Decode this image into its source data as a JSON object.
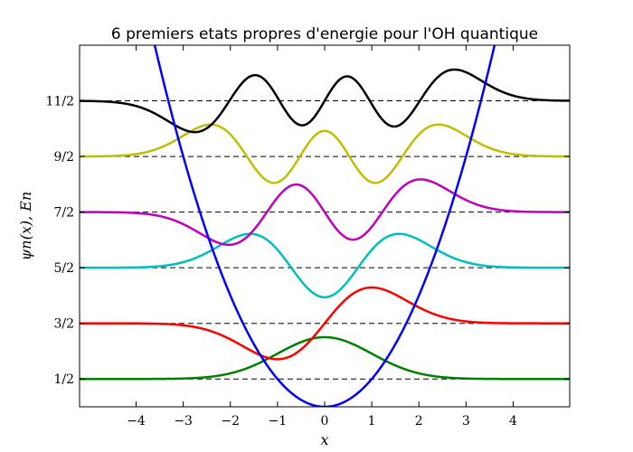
{
  "chart_data": {
    "type": "line",
    "title": "6 premiers etats propres d'energie pour l'OH quantique",
    "xlabel": "x",
    "ylabel": "ψn(x),  En",
    "xlim": [
      -5.2,
      5.2
    ],
    "ylim": [
      0,
      6.5
    ],
    "x_ticks": [
      -4,
      -3,
      -2,
      -1,
      0,
      1,
      2,
      3,
      4
    ],
    "x_tick_labels": [
      "−4",
      "−3",
      "−2",
      "−1",
      "0",
      "1",
      "2",
      "3",
      "4"
    ],
    "y_ticks": [
      0.5,
      1.5,
      2.5,
      3.5,
      4.5,
      5.5
    ],
    "y_tick_labels": [
      "1/2",
      "3/2",
      "5/2",
      "7/2",
      "9/2",
      "11/2"
    ],
    "grid": false,
    "potential": {
      "name": "",
      "function": "x^2/2",
      "color": "#0000ff"
    },
    "energy_levels": {
      "values": [
        0.5,
        1.5,
        2.5,
        3.5,
        4.5,
        5.5
      ],
      "style": "dashed",
      "color": "#000000"
    },
    "series": [
      {
        "name": "",
        "n": 0,
        "energy": 0.5,
        "color": "#008000"
      },
      {
        "name": "",
        "n": 1,
        "energy": 1.5,
        "color": "#ff0000"
      },
      {
        "name": "",
        "n": 2,
        "energy": 2.5,
        "color": "#00bfbf"
      },
      {
        "name": "",
        "n": 3,
        "energy": 3.5,
        "color": "#bf00bf"
      },
      {
        "name": "",
        "n": 4,
        "energy": 4.5,
        "color": "#bfbf00"
      },
      {
        "name": "",
        "n": 5,
        "energy": 5.5,
        "color": "#000000"
      }
    ]
  }
}
